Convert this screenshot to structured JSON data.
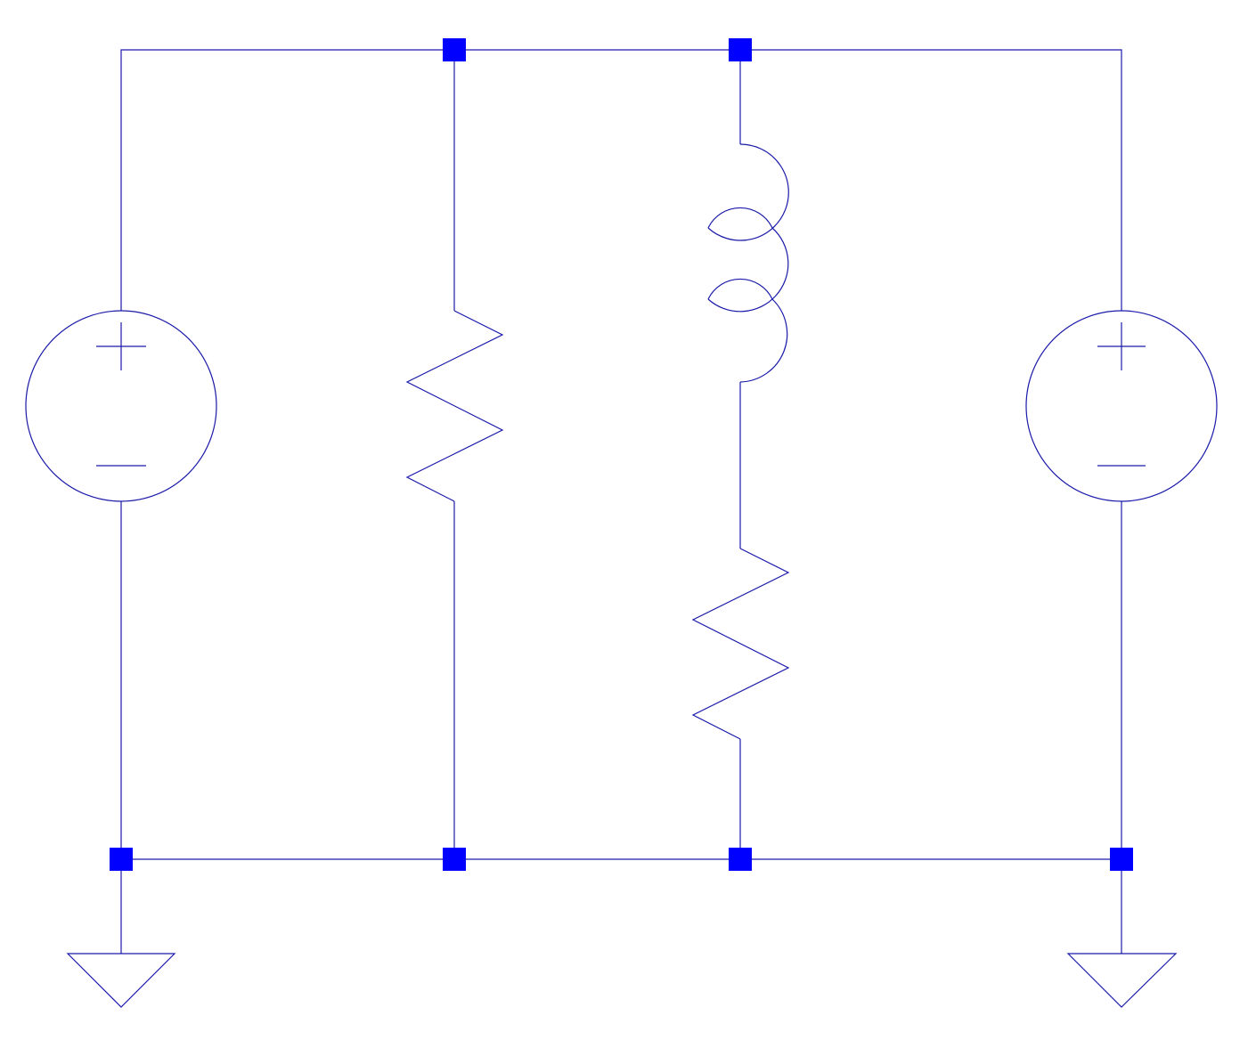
{
  "schematic": {
    "colors": {
      "wire": "#1a1aaa",
      "node": "#0000ff",
      "background": "#ffffff"
    },
    "components": [
      {
        "kind": "voltage-source",
        "icon": "voltage-source-icon",
        "branch": 1
      },
      {
        "kind": "resistor",
        "icon": "resistor-icon",
        "branch": 2
      },
      {
        "kind": "inductor",
        "icon": "inductor-icon",
        "branch": 3
      },
      {
        "kind": "resistor",
        "icon": "resistor-icon",
        "branch": 3
      },
      {
        "kind": "voltage-source",
        "icon": "voltage-source-icon",
        "branch": 4
      },
      {
        "kind": "ground",
        "icon": "ground-icon",
        "branch": 1
      },
      {
        "kind": "ground",
        "icon": "ground-icon",
        "branch": 4
      }
    ],
    "node_count": 6
  }
}
